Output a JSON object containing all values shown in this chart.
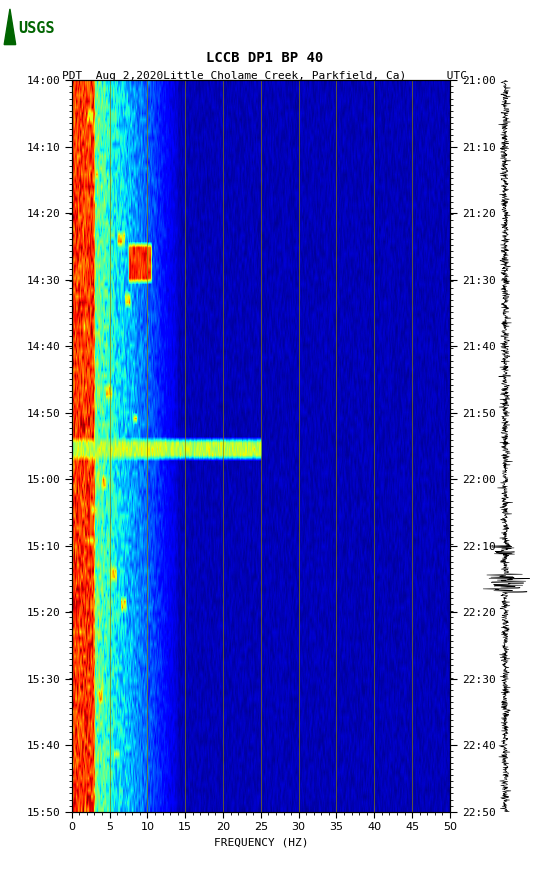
{
  "title_line1": "LCCB DP1 BP 40",
  "title_line2": "PDT  Aug 2,2020Little Cholame Creek, Parkfield, Ca)      UTC",
  "left_yticks": [
    "14:00",
    "14:10",
    "14:20",
    "14:30",
    "14:40",
    "14:50",
    "15:00",
    "15:10",
    "15:20",
    "15:30",
    "15:40",
    "15:50"
  ],
  "right_yticks": [
    "21:00",
    "21:10",
    "21:20",
    "21:30",
    "21:40",
    "21:50",
    "22:00",
    "22:10",
    "22:20",
    "22:30",
    "22:40",
    "22:50"
  ],
  "xticks": [
    0,
    5,
    10,
    15,
    20,
    25,
    30,
    35,
    40,
    45,
    50
  ],
  "xlabel": "FREQUENCY (HZ)",
  "xmin": 0,
  "xmax": 50,
  "freq_lines": [
    5,
    10,
    15,
    20,
    25,
    30,
    35,
    40,
    45
  ],
  "fig_bg": "#ffffff",
  "colormap": "jet",
  "n_time_steps": 120,
  "n_freq_steps": 500
}
